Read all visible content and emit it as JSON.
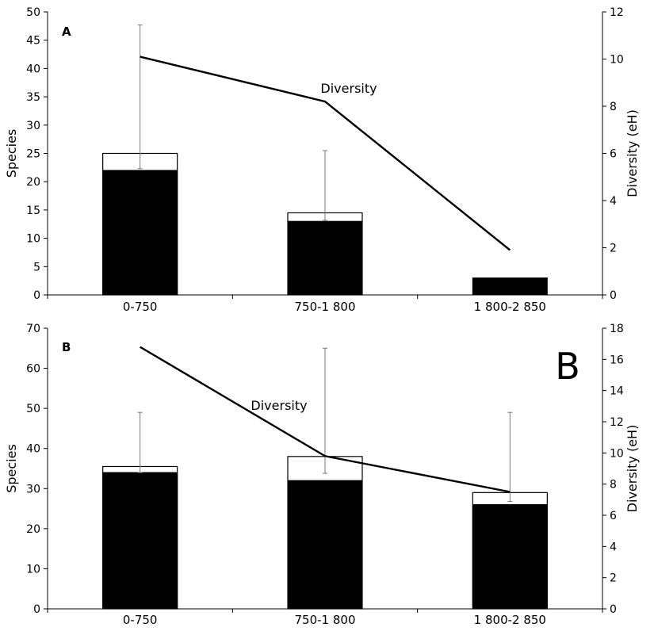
{
  "chart_data": [
    {
      "type": "bar",
      "panel_label": "A",
      "corner_mark": "",
      "categories": [
        "0-750",
        "750-1 800",
        "1 800-2 850"
      ],
      "ylabel": "Species",
      "y2label": "Diversity (eH)",
      "ylim": [
        0,
        50
      ],
      "yticks": [
        0,
        5,
        10,
        15,
        20,
        25,
        30,
        35,
        40,
        45,
        50
      ],
      "y2lim": [
        0,
        12
      ],
      "y2ticks": [
        0,
        2,
        4,
        6,
        8,
        10,
        12
      ],
      "series": [
        {
          "role": "observed",
          "values": [
            22,
            13,
            3
          ],
          "color": "#000000"
        },
        {
          "role": "estimated",
          "values": [
            25,
            14.5,
            3
          ],
          "color": "#ffffff"
        }
      ],
      "error_bars": [
        [
          22.3,
          47.7
        ],
        [
          13.2,
          25.5
        ],
        null
      ],
      "line": {
        "name": "Diversity",
        "values": [
          10.1,
          8.2,
          1.9
        ]
      },
      "grid": false,
      "legend": "none"
    },
    {
      "type": "bar",
      "panel_label": "B",
      "corner_mark": "B",
      "categories": [
        "0-750",
        "750-1 800",
        "1 800-2 850"
      ],
      "ylabel": "Species",
      "y2label": "Diversity (eH)",
      "ylim": [
        0,
        70
      ],
      "yticks": [
        0,
        10,
        20,
        30,
        40,
        50,
        60,
        70
      ],
      "y2lim": [
        0,
        18
      ],
      "y2ticks": [
        0,
        2,
        4,
        6,
        8,
        10,
        12,
        14,
        16,
        18
      ],
      "series": [
        {
          "role": "observed",
          "values": [
            34,
            32,
            26
          ],
          "color": "#000000"
        },
        {
          "role": "estimated",
          "values": [
            35.5,
            38,
            29
          ],
          "color": "#ffffff"
        }
      ],
      "error_bars": [
        [
          34,
          49
        ],
        [
          33.8,
          65
        ],
        [
          26.8,
          49
        ]
      ],
      "line": {
        "name": "Diversity",
        "values": [
          16.8,
          9.8,
          7.5
        ]
      },
      "grid": false,
      "legend": "none"
    }
  ]
}
